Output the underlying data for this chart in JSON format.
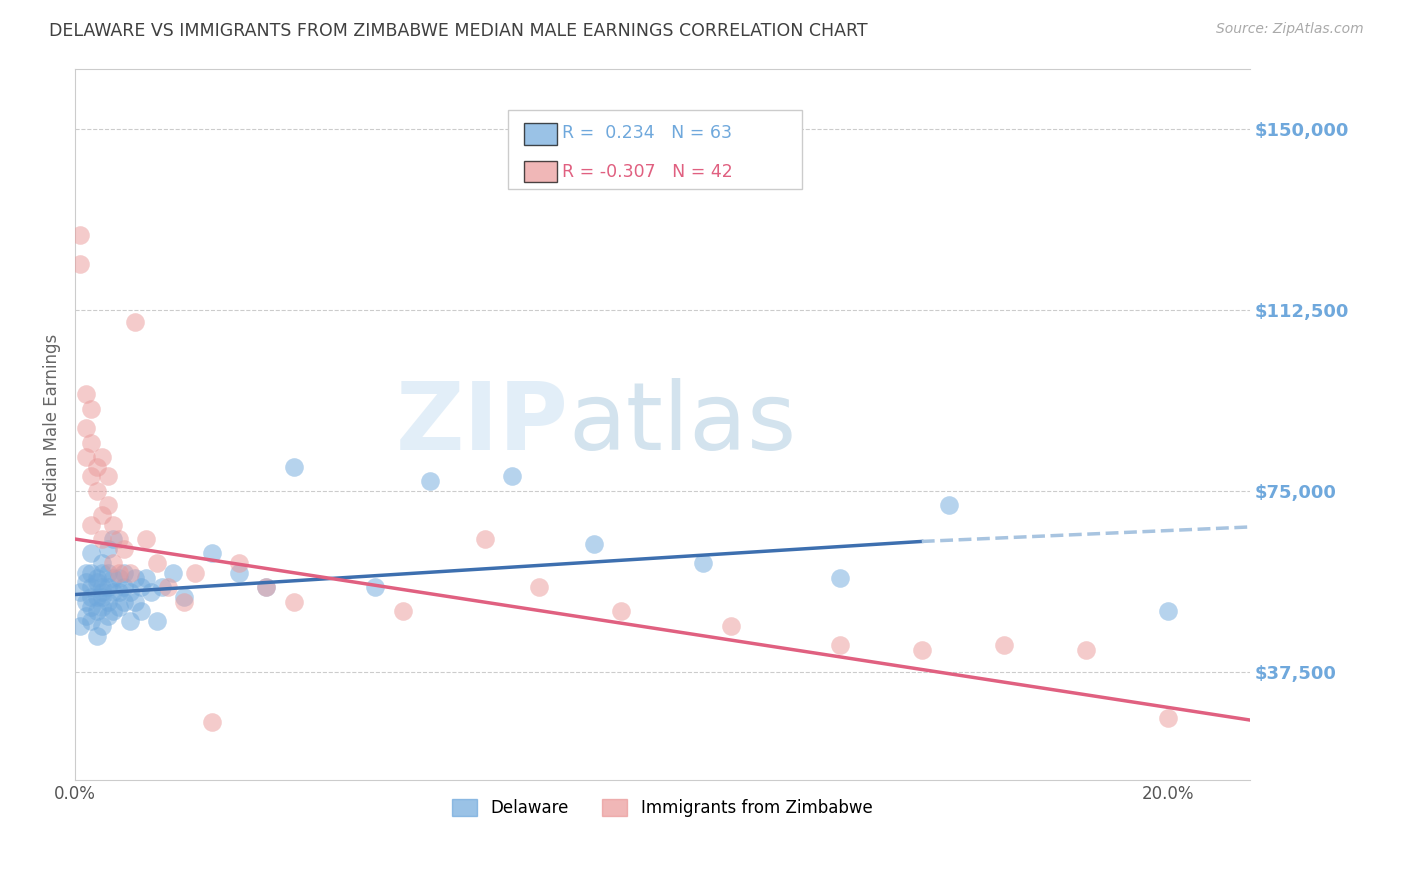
{
  "title": "DELAWARE VS IMMIGRANTS FROM ZIMBABWE MEDIAN MALE EARNINGS CORRELATION CHART",
  "source": "Source: ZipAtlas.com",
  "ylabel": "Median Male Earnings",
  "ytick_labels": [
    "$37,500",
    "$75,000",
    "$112,500",
    "$150,000"
  ],
  "ytick_values": [
    37500,
    75000,
    112500,
    150000
  ],
  "ylim": [
    15000,
    162500
  ],
  "xlim": [
    0.0,
    0.215
  ],
  "legend_blue_r": "0.234",
  "legend_blue_n": "63",
  "legend_pink_r": "-0.307",
  "legend_pink_n": "42",
  "color_blue": "#6fa8dc",
  "color_pink": "#ea9999",
  "color_line_blue": "#3d6faf",
  "color_line_pink": "#e06080",
  "color_axis_labels": "#6fa8dc",
  "color_title": "#404040",
  "blue_x": [
    0.001,
    0.001,
    0.002,
    0.002,
    0.002,
    0.002,
    0.003,
    0.003,
    0.003,
    0.003,
    0.003,
    0.003,
    0.004,
    0.004,
    0.004,
    0.004,
    0.004,
    0.005,
    0.005,
    0.005,
    0.005,
    0.005,
    0.005,
    0.005,
    0.006,
    0.006,
    0.006,
    0.006,
    0.006,
    0.007,
    0.007,
    0.007,
    0.007,
    0.008,
    0.008,
    0.008,
    0.009,
    0.009,
    0.009,
    0.01,
    0.01,
    0.011,
    0.011,
    0.012,
    0.012,
    0.013,
    0.014,
    0.015,
    0.016,
    0.018,
    0.02,
    0.025,
    0.03,
    0.035,
    0.04,
    0.055,
    0.065,
    0.08,
    0.095,
    0.115,
    0.14,
    0.16,
    0.2
  ],
  "blue_y": [
    54000,
    47000,
    56000,
    52000,
    49000,
    58000,
    55000,
    51000,
    58000,
    62000,
    48000,
    53000,
    57000,
    53000,
    50000,
    56000,
    45000,
    54000,
    58000,
    51000,
    55000,
    60000,
    47000,
    53000,
    55000,
    52000,
    58000,
    49000,
    63000,
    54000,
    57000,
    50000,
    65000,
    54000,
    57000,
    51000,
    55000,
    52000,
    58000,
    54000,
    48000,
    57000,
    52000,
    55000,
    50000,
    57000,
    54000,
    48000,
    55000,
    58000,
    53000,
    62000,
    58000,
    55000,
    80000,
    55000,
    77000,
    78000,
    64000,
    60000,
    57000,
    72000,
    50000
  ],
  "pink_x": [
    0.001,
    0.001,
    0.002,
    0.002,
    0.002,
    0.003,
    0.003,
    0.003,
    0.003,
    0.004,
    0.004,
    0.005,
    0.005,
    0.005,
    0.006,
    0.006,
    0.007,
    0.007,
    0.008,
    0.008,
    0.009,
    0.01,
    0.011,
    0.013,
    0.015,
    0.017,
    0.02,
    0.022,
    0.025,
    0.03,
    0.035,
    0.04,
    0.06,
    0.075,
    0.085,
    0.1,
    0.12,
    0.14,
    0.155,
    0.17,
    0.185,
    0.2
  ],
  "pink_y": [
    128000,
    122000,
    82000,
    88000,
    95000,
    78000,
    85000,
    92000,
    68000,
    80000,
    75000,
    82000,
    70000,
    65000,
    78000,
    72000,
    68000,
    60000,
    65000,
    58000,
    63000,
    58000,
    110000,
    65000,
    60000,
    55000,
    52000,
    58000,
    27000,
    60000,
    55000,
    52000,
    50000,
    65000,
    55000,
    50000,
    47000,
    43000,
    42000,
    43000,
    42000,
    28000
  ]
}
